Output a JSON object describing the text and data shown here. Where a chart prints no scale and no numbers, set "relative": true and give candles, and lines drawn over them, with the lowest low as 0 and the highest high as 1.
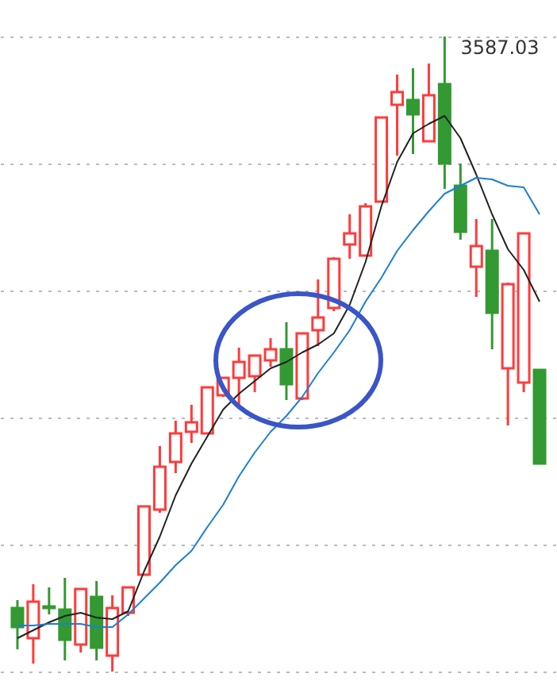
{
  "chart_data": {
    "type": "candlestick",
    "relative": true,
    "grid": "y",
    "categories": [
      null,
      null,
      null,
      null,
      null,
      null,
      null,
      null,
      null,
      null,
      null,
      null,
      null,
      null,
      null,
      null,
      null,
      null,
      null,
      null,
      null,
      null,
      null,
      null,
      null,
      null,
      null,
      null,
      null,
      null,
      null,
      null,
      null,
      null
    ],
    "ohlc": [
      [
        0.1,
        0.1125,
        0.035,
        0.07
      ],
      [
        0.0525,
        0.1375,
        0.0125,
        0.11
      ],
      [
        0.1025,
        0.1325,
        0.09,
        0.1
      ],
      [
        0.0975,
        0.1475,
        0.0175,
        0.05
      ],
      [
        0.0425,
        0.13,
        0.03,
        0.13
      ],
      [
        0.1175,
        0.1425,
        0.0175,
        0.0375
      ],
      [
        0.025,
        0.12,
        0,
        0.1
      ],
      [
        0.0925,
        0.1325,
        0.0875,
        0.1325
      ],
      [
        0.1525,
        0.26,
        0.1525,
        0.26
      ],
      [
        0.255,
        0.355,
        0.25,
        0.3225
      ],
      [
        0.33,
        0.395,
        0.3125,
        0.375
      ],
      [
        0.3775,
        0.42,
        0.36,
        0.3925
      ],
      [
        0.375,
        0.4475,
        0.375,
        0.4475
      ],
      [
        0.435,
        0.4625,
        0.4325,
        0.4625
      ],
      [
        0.4625,
        0.51,
        0.4175,
        0.4875
      ],
      [
        0.465,
        0.4975,
        0.44,
        0.4975
      ],
      [
        0.49,
        0.525,
        0.48,
        0.5075
      ],
      [
        0.5075,
        0.55,
        0.4275,
        0.4525
      ],
      [
        0.43,
        0.5325,
        0.4275,
        0.5325
      ],
      [
        0.5375,
        0.6175,
        0.5125,
        0.5575
      ],
      [
        0.5725,
        0.6525,
        0.5675,
        0.65
      ],
      [
        0.6725,
        0.72,
        0.65,
        0.69
      ],
      [
        0.655,
        0.7375,
        0.655,
        0.7325
      ],
      [
        0.74,
        0.8725,
        0.74,
        0.8725
      ],
      [
        0.8925,
        0.94,
        0.8125,
        0.9125
      ],
      [
        0.9,
        0.95,
        0.815,
        0.8775
      ],
      [
        0.835,
        0.9575,
        0.835,
        0.9075
      ],
      [
        0.925,
        1,
        0.76,
        0.8
      ],
      [
        0.765,
        0.8,
        0.68,
        0.6925
      ],
      [
        0.6375,
        0.7125,
        0.59,
        0.67
      ],
      [
        0.6625,
        0.7125,
        0.5075,
        0.565
      ],
      [
        0.4775,
        0.6125,
        0.3875,
        0.61
      ],
      [
        0.455,
        0.69,
        0.44,
        0.69
      ],
      [
        0.475,
        0.475,
        0.3275,
        0.3275
      ]
    ],
    "colors": [
      "#339933",
      "#ff3b3b",
      "#339933",
      "#339933",
      "#ff3b3b",
      "#339933",
      "#ff3b3b",
      "#ff3b3b",
      "#ff3b3b",
      "#ff3b3b",
      "#ff3b3b",
      "#ff3b3b",
      "#ff3b3b",
      "#ff3b3b",
      "#ff3b3b",
      "#ff3b3b",
      "#ff3b3b",
      "#339933",
      "#ff3b3b",
      "#ff3b3b",
      "#ff3b3b",
      "#ff3b3b",
      "#ff3b3b",
      "#ff3b3b",
      "#ff3b3b",
      "#339933",
      "#ff3b3b",
      "#339933",
      "#339933",
      "#ff3b3b",
      "#339933",
      "#ff3b3b",
      "#ff3b3b",
      "#339933"
    ],
    "series": [
      {
        "type": "line",
        "color": "#222222",
        "values": [
          0.0525,
          0.065,
          0.0775,
          0.0875,
          0.0925,
          0.085,
          0.0825,
          0.095,
          0.1575,
          0.2125,
          0.2775,
          0.3275,
          0.37,
          0.4125,
          0.4375,
          0.4575,
          0.4775,
          0.4875,
          0.5025,
          0.515,
          0.5325,
          0.5775,
          0.645,
          0.7325,
          0.8025,
          0.8475,
          0.8625,
          0.875,
          0.84,
          0.7825,
          0.72,
          0.665,
          0.6325,
          0.5825
        ]
      },
      {
        "type": "line",
        "color": "#1a7fd4",
        "values": [
          0.0725,
          0.0725,
          0.075,
          0.075,
          0.075,
          0.07,
          0.07,
          0.09,
          0.115,
          0.14,
          0.1675,
          0.19,
          0.2275,
          0.2625,
          0.3075,
          0.345,
          0.3775,
          0.4025,
          0.4325,
          0.47,
          0.5025,
          0.5375,
          0.5825,
          0.62,
          0.6625,
          0.695,
          0.725,
          0.7525,
          0.765,
          0.7775,
          0.775,
          0.765,
          0.7625,
          0.72
        ]
      }
    ],
    "annotations": [
      "3587.03"
    ]
  }
}
